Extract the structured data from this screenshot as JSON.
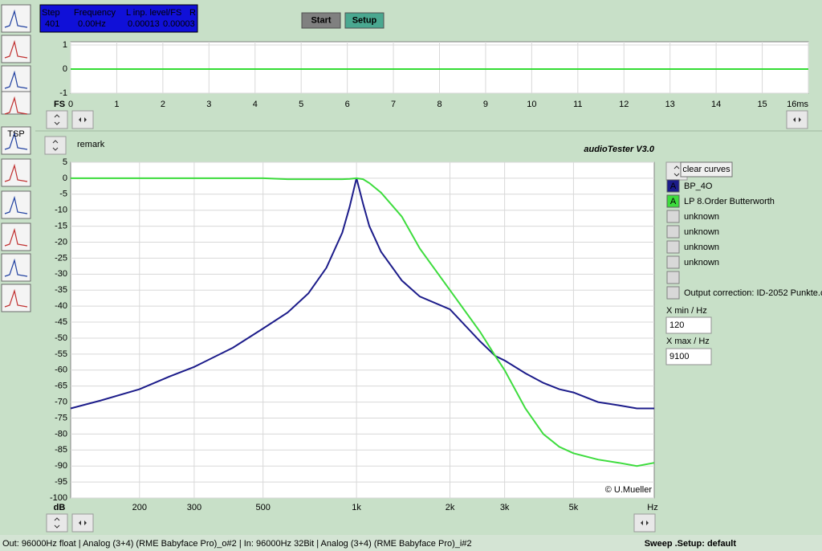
{
  "status_panel": {
    "headers": [
      "Step",
      "Frequency",
      "L inp. level/FS",
      "R"
    ],
    "values": [
      401,
      "0.00Hz",
      "0.00013",
      "0.00003"
    ]
  },
  "buttons": [
    "Start",
    "Setup"
  ],
  "toolbar_label": "TSP",
  "remark": "remark",
  "app_title": "audioTester  V3.0",
  "copyright": "© U.Mueller",
  "clear_button": "clear curves",
  "legend_marker": "A",
  "curve_slots": [
    "unknown",
    "unknown",
    "unknown",
    "unknown"
  ],
  "output_correction": "Output correction: ID-2052 Punkte.c",
  "xmin_label": "X min / Hz",
  "xmax_label": "X max / Hz",
  "status_bar": {
    "left": "Out: 96000Hz float  | Analog (3+4) (RME Babyface Pro)_o#2 | In: 96000Hz 32Bit  | Analog (3+4) (RME Babyface Pro)_i#2",
    "right": "Sweep .Setup: default"
  },
  "chart_data": [
    {
      "type": "line",
      "y_axis_label": "FS",
      "x": [
        0,
        16
      ],
      "series": [
        {
          "color": "#33dd33",
          "values": [
            0,
            0
          ]
        }
      ],
      "xlim": [
        0,
        16
      ],
      "ylim": [
        -1,
        1
      ],
      "xticks": [
        0,
        1,
        2,
        3,
        4,
        5,
        6,
        7,
        8,
        9,
        10,
        11,
        12,
        13,
        14,
        15,
        {
          "value": 16,
          "label": "16ms"
        }
      ],
      "yticks": [
        1,
        0,
        -1
      ],
      "grid": true
    },
    {
      "type": "line",
      "xscale": "log",
      "x_unit": "Hz",
      "y_axis_label": "dB",
      "x": [
        120,
        150,
        200,
        250,
        300,
        400,
        500,
        600,
        700,
        800,
        900,
        950,
        1000,
        1050,
        1100,
        1200,
        1400,
        1600,
        2000,
        2500,
        2800,
        3000,
        3500,
        4000,
        4500,
        5000,
        6000,
        7000,
        8000,
        9100
      ],
      "series": [
        {
          "name": "BP_4O",
          "color": "#1c1c8a",
          "values": [
            -72,
            -69.5,
            -66,
            -62,
            -59,
            -53,
            -47,
            -42,
            -36,
            -28,
            -17,
            -9,
            0,
            -8,
            -15,
            -23,
            -32,
            -37,
            -41,
            -51,
            -55.6,
            -57,
            -61,
            -64,
            -66,
            -67,
            -70,
            -71,
            -72,
            -72
          ]
        },
        {
          "name": "LP 8.Order Butterworth",
          "color": "#3ddc3d",
          "values": [
            0,
            0,
            0,
            0,
            0,
            0,
            0,
            -0.3,
            -0.3,
            -0.3,
            -0.3,
            -0.2,
            0,
            -0.3,
            -1.5,
            -4.5,
            -12,
            -22,
            -35,
            -48,
            -55.6,
            -60,
            -72,
            -80,
            -84,
            -86,
            -88,
            -89,
            -90,
            -89
          ]
        }
      ],
      "xlim": [
        120,
        9100
      ],
      "ylim": [
        -100,
        5
      ],
      "xticks": [
        200,
        300,
        500,
        {
          "value": 1000,
          "label": "1k"
        },
        {
          "value": 2000,
          "label": "2k"
        },
        {
          "value": 3000,
          "label": "3k"
        },
        {
          "value": 5000,
          "label": "5k"
        }
      ],
      "yticks": [
        5,
        0,
        -5,
        -10,
        -15,
        -20,
        -25,
        -30,
        -35,
        -40,
        -45,
        -50,
        -55,
        -60,
        -65,
        -70,
        -75,
        -80,
        -85,
        -90,
        -95,
        -100
      ],
      "grid": true
    }
  ]
}
